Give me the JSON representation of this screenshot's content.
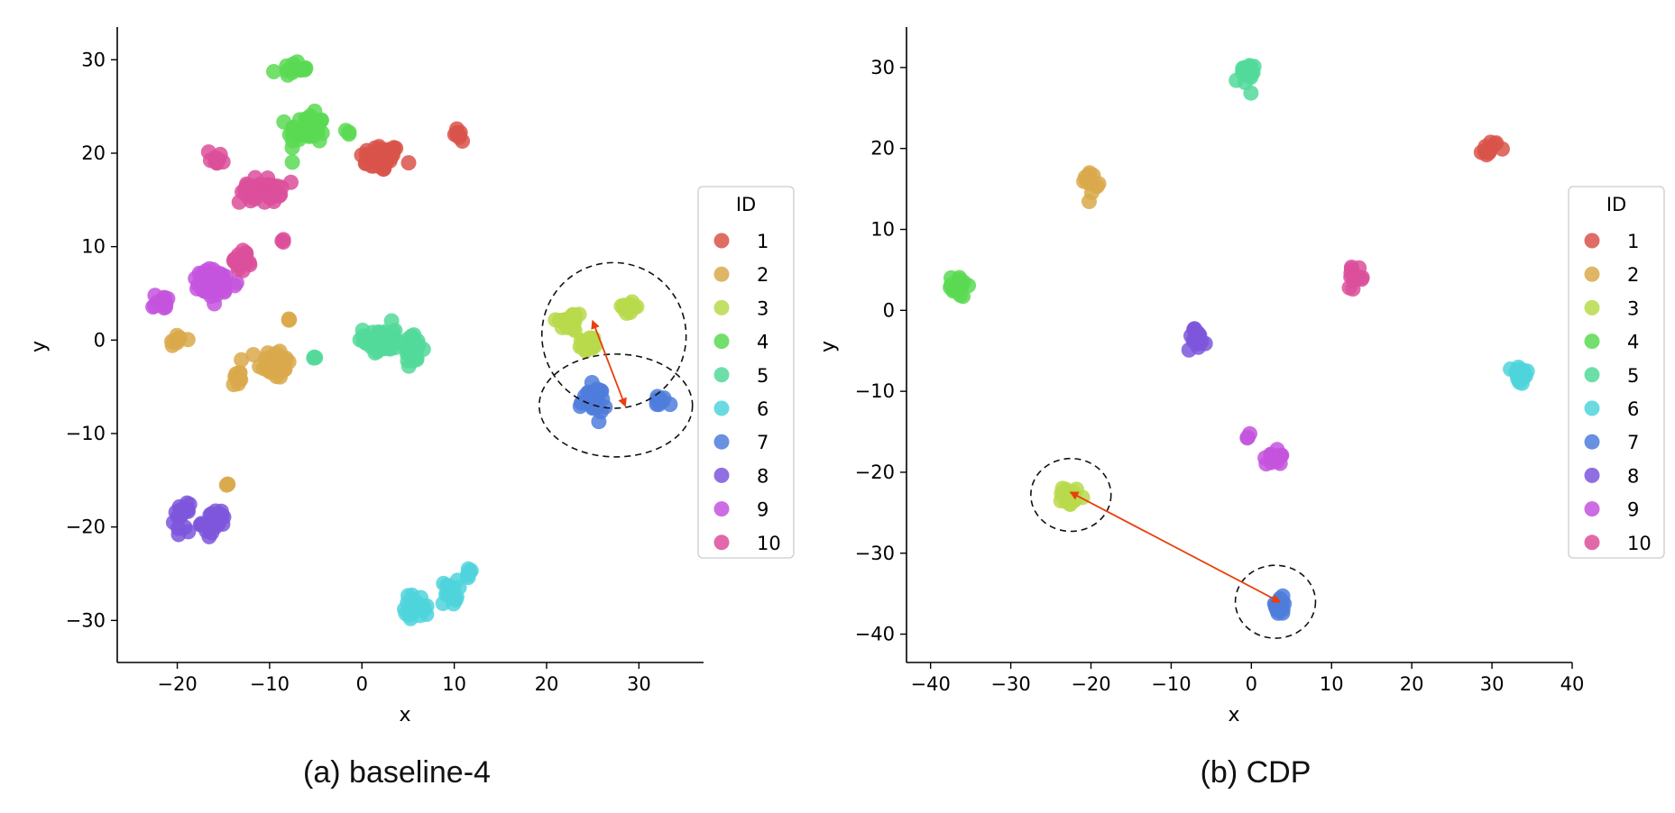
{
  "captions": {
    "a": "(a) baseline-4",
    "b": "(b) CDP"
  },
  "legend": {
    "title": "ID",
    "labels": [
      "1",
      "2",
      "3",
      "4",
      "5",
      "6",
      "7",
      "8",
      "9",
      "10"
    ],
    "colors": [
      "#d9534a",
      "#d9a94b",
      "#b7d94b",
      "#5bd954",
      "#52d99a",
      "#4fd3dc",
      "#4f7ddc",
      "#7c56dc",
      "#c453de",
      "#dc4f9b"
    ]
  },
  "annotation_colors": {
    "arrow": "#e8400e",
    "ellipse": "#111111"
  },
  "chart_data": [
    {
      "type": "scatter",
      "title": "",
      "xlabel": "x",
      "ylabel": "y",
      "xlim": [
        -26.5,
        37
      ],
      "ylim": [
        -34.5,
        33.5
      ],
      "xticks": [
        -20,
        -10,
        0,
        10,
        20,
        30
      ],
      "yticks": [
        -30,
        -20,
        -10,
        0,
        10,
        20,
        30
      ],
      "xtick_labels": [
        "−20",
        "−10",
        "0",
        "10",
        "20",
        "30"
      ],
      "ytick_labels": [
        "−30",
        "−20",
        "−10",
        "0",
        "10",
        "20",
        "30"
      ],
      "legend_position": "right",
      "grid": false,
      "clusters": [
        {
          "id": 1,
          "cx": 2,
          "cy": 19.5,
          "sx": 2,
          "sy": 1.3
        },
        {
          "id": 1,
          "cx": 10.8,
          "cy": 22,
          "sx": 0.7,
          "sy": 0.8
        },
        {
          "id": 2,
          "cx": -9.5,
          "cy": -2.5,
          "sx": 1.6,
          "sy": 1.5
        },
        {
          "id": 2,
          "cx": -13.5,
          "cy": -4,
          "sx": 0.6,
          "sy": 1
        },
        {
          "id": 2,
          "cx": -20,
          "cy": 0,
          "sx": 0.9,
          "sy": 0.6
        },
        {
          "id": 2,
          "cx": -14.5,
          "cy": -15.5,
          "sx": 0.2,
          "sy": 0.2
        },
        {
          "id": 2,
          "cx": -8,
          "cy": 2.2,
          "sx": 0.2,
          "sy": 0.2
        },
        {
          "id": 3,
          "cx": 22.5,
          "cy": 2,
          "sx": 1.3,
          "sy": 1
        },
        {
          "id": 3,
          "cx": 24.5,
          "cy": -0.5,
          "sx": 1,
          "sy": 0.9
        },
        {
          "id": 3,
          "cx": 29,
          "cy": 3.5,
          "sx": 1,
          "sy": 0.7
        },
        {
          "id": 4,
          "cx": -6,
          "cy": 22.5,
          "sx": 1.8,
          "sy": 1.5
        },
        {
          "id": 4,
          "cx": -7.5,
          "cy": 29,
          "sx": 1.5,
          "sy": 0.6
        },
        {
          "id": 4,
          "cx": -1.5,
          "cy": 22.3,
          "sx": 0.25,
          "sy": 0.25
        },
        {
          "id": 5,
          "cx": 2,
          "cy": 0,
          "sx": 1.6,
          "sy": 1.6
        },
        {
          "id": 5,
          "cx": 5.5,
          "cy": -1,
          "sx": 1,
          "sy": 1.4
        },
        {
          "id": 5,
          "cx": -5,
          "cy": -1.8,
          "sx": 0.3,
          "sy": 0.3
        },
        {
          "id": 6,
          "cx": 6,
          "cy": -28.5,
          "sx": 1.2,
          "sy": 1.2
        },
        {
          "id": 6,
          "cx": 9.5,
          "cy": -27,
          "sx": 0.8,
          "sy": 1.2
        },
        {
          "id": 6,
          "cx": 11.5,
          "cy": -25,
          "sx": 0.5,
          "sy": 0.7
        },
        {
          "id": 7,
          "cx": 25,
          "cy": -6.5,
          "sx": 1.3,
          "sy": 1.4
        },
        {
          "id": 7,
          "cx": 32.3,
          "cy": -6.5,
          "sx": 0.7,
          "sy": 0.6
        },
        {
          "id": 8,
          "cx": -16,
          "cy": -19.5,
          "sx": 1.2,
          "sy": 1.2
        },
        {
          "id": 8,
          "cx": -19.5,
          "cy": -19,
          "sx": 0.7,
          "sy": 1.3
        },
        {
          "id": 9,
          "cx": -16,
          "cy": 6,
          "sx": 2.3,
          "sy": 1.4
        },
        {
          "id": 9,
          "cx": -21.5,
          "cy": 4,
          "sx": 1,
          "sy": 0.8
        },
        {
          "id": 10,
          "cx": -15.8,
          "cy": 19.5,
          "sx": 0.8,
          "sy": 0.7
        },
        {
          "id": 10,
          "cx": -11,
          "cy": 16,
          "sx": 2,
          "sy": 1.2
        },
        {
          "id": 10,
          "cx": -13,
          "cy": 8.5,
          "sx": 1,
          "sy": 1
        },
        {
          "id": 10,
          "cx": -8.5,
          "cy": 10.7,
          "sx": 0.25,
          "sy": 0.25
        }
      ],
      "annotations": {
        "ellipses": [
          {
            "cx": 27.3,
            "cy": 0.5,
            "rx": 7.8,
            "ry": 7.8,
            "angle": -18
          },
          {
            "cx": 27.5,
            "cy": -7,
            "rx": 8.3,
            "ry": 5.5,
            "angle": 0
          }
        ],
        "arrows": [
          {
            "x1": 25,
            "y1": 2,
            "x2": 28.5,
            "y2": -7
          }
        ]
      }
    },
    {
      "type": "scatter",
      "title": "",
      "xlabel": "x",
      "ylabel": "y",
      "xlim": [
        -43,
        40
      ],
      "ylim": [
        -43.5,
        35
      ],
      "xticks": [
        -40,
        -30,
        -20,
        -10,
        0,
        10,
        20,
        30,
        40
      ],
      "yticks": [
        -40,
        -30,
        -20,
        -10,
        0,
        10,
        20,
        30
      ],
      "xtick_labels": [
        "−40",
        "−30",
        "−20",
        "−10",
        "0",
        "10",
        "20",
        "30",
        "40"
      ],
      "ytick_labels": [
        "−40",
        "−30",
        "−20",
        "−10",
        "0",
        "10",
        "20",
        "30"
      ],
      "legend_position": "right",
      "grid": false,
      "clusters": [
        {
          "id": 1,
          "cx": 29.8,
          "cy": 20,
          "sx": 0.9,
          "sy": 0.9
        },
        {
          "id": 2,
          "cx": -20,
          "cy": 16,
          "sx": 0.8,
          "sy": 1.2
        },
        {
          "id": 3,
          "cx": -22.5,
          "cy": -23,
          "sx": 0.9,
          "sy": 1.1
        },
        {
          "id": 4,
          "cx": -36.5,
          "cy": 3,
          "sx": 0.9,
          "sy": 1.2
        },
        {
          "id": 5,
          "cx": -0.8,
          "cy": 29,
          "sx": 1,
          "sy": 1.3
        },
        {
          "id": 6,
          "cx": 33.5,
          "cy": -8,
          "sx": 0.9,
          "sy": 1.2
        },
        {
          "id": 7,
          "cx": 3.5,
          "cy": -36.5,
          "sx": 1,
          "sy": 1
        },
        {
          "id": 8,
          "cx": -6.8,
          "cy": -3.5,
          "sx": 1,
          "sy": 1.2
        },
        {
          "id": 9,
          "cx": 3,
          "cy": -18,
          "sx": 1,
          "sy": 0.9
        },
        {
          "id": 9,
          "cx": -0.3,
          "cy": -15.5,
          "sx": 0.4,
          "sy": 0.4
        },
        {
          "id": 10,
          "cx": 13,
          "cy": 4,
          "sx": 0.9,
          "sy": 1
        }
      ],
      "annotations": {
        "ellipses": [
          {
            "cx": -22.5,
            "cy": -22.8,
            "rx": 5,
            "ry": 4.5,
            "angle": 0
          },
          {
            "cx": 3,
            "cy": -36,
            "rx": 5,
            "ry": 4.5,
            "angle": 0
          }
        ],
        "arrows": [
          {
            "x1": -22.5,
            "y1": -22.5,
            "x2": 3.5,
            "y2": -36
          }
        ]
      }
    }
  ]
}
